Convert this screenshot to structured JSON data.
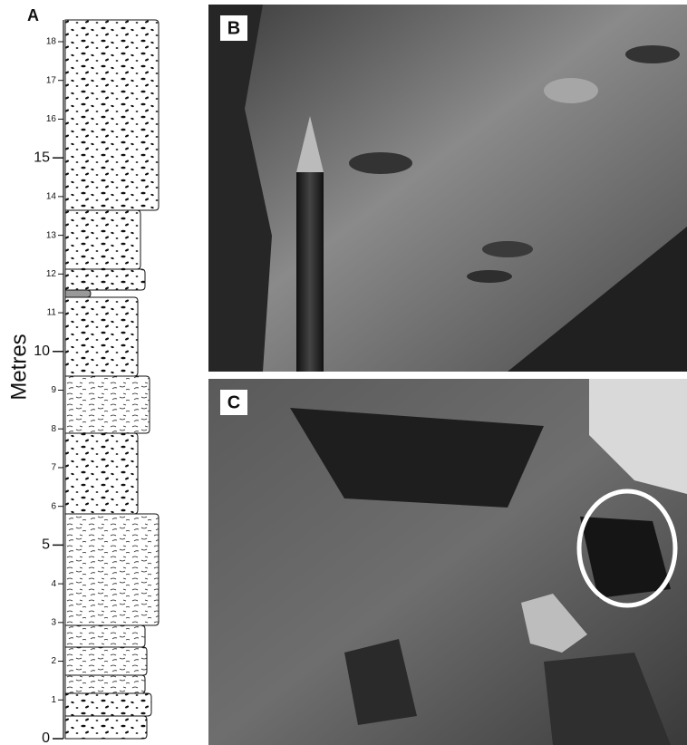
{
  "panels": {
    "a": {
      "label": "A",
      "axis_label": "Metres",
      "ylim": [
        0,
        18
      ],
      "yticks": [
        0,
        1,
        2,
        3,
        4,
        5,
        6,
        7,
        8,
        9,
        10,
        11,
        12,
        13,
        14,
        15,
        16,
        17,
        18
      ]
    },
    "b": {
      "label": "B"
    },
    "c": {
      "label": "C"
    }
  }
}
